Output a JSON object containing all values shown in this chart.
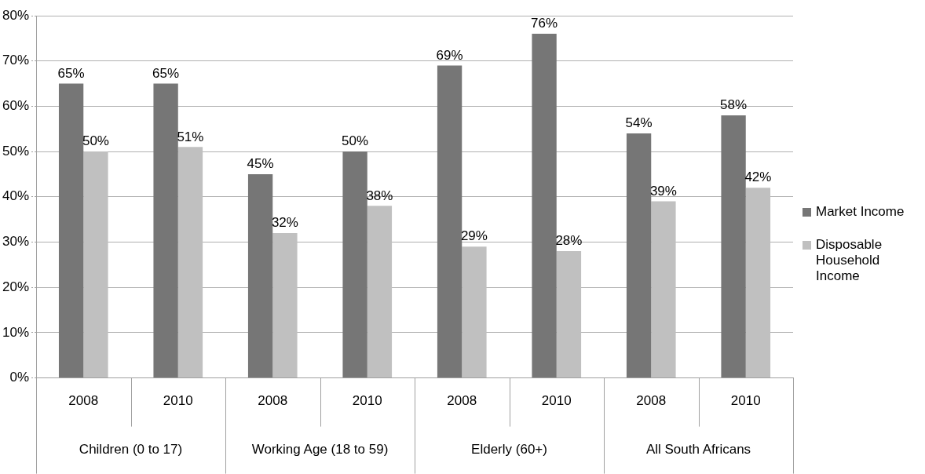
{
  "chart_data": {
    "type": "bar",
    "categories": [
      "2008",
      "2010",
      "2008",
      "2010",
      "2008",
      "2010",
      "2008",
      "2010"
    ],
    "series": [
      {
        "name": "Market Income",
        "color": "#767676",
        "values": [
          65,
          65,
          45,
          50,
          69,
          76,
          54,
          58
        ],
        "value_labels": [
          "65%",
          "65%",
          "45%",
          "50%",
          "69%",
          "76%",
          "54%",
          "58%"
        ]
      },
      {
        "name": "Disposable Household Income",
        "color": "#c0c0c0",
        "values": [
          50,
          51,
          32,
          38,
          29,
          28,
          39,
          42
        ],
        "value_labels": [
          "50%",
          "51%",
          "32%",
          "38%",
          "29%",
          "28%",
          "39%",
          "42%"
        ]
      }
    ],
    "ylim": [
      0,
      80
    ],
    "yticks": [
      {
        "value": 0,
        "label": "0%"
      },
      {
        "value": 10,
        "label": "10%"
      },
      {
        "value": 20,
        "label": "20%"
      },
      {
        "value": 30,
        "label": "30%"
      },
      {
        "value": 40,
        "label": "40%"
      },
      {
        "value": 50,
        "label": "50%"
      },
      {
        "value": 60,
        "label": "60%"
      },
      {
        "value": 70,
        "label": "70%"
      },
      {
        "value": 80,
        "label": "80%"
      }
    ],
    "annotations": [
      "Children (0 to 17)",
      "Working Age (18 to 59)",
      "Elderly (60+)",
      "All South Africans"
    ],
    "grid": "y",
    "legend": "right"
  }
}
